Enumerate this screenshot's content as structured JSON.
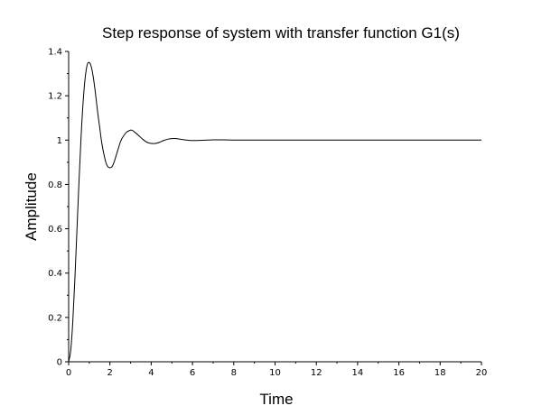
{
  "chart_data": {
    "type": "line",
    "title": "Step response of system with transfer function G1(s)",
    "xlabel": "Time",
    "ylabel": "Amplitude",
    "xlim": [
      0,
      20
    ],
    "ylim": [
      0,
      1.4
    ],
    "x_ticks": [
      0,
      2,
      4,
      6,
      8,
      10,
      12,
      14,
      16,
      18,
      20
    ],
    "x_tick_labels": [
      "0",
      "2",
      "4",
      "6",
      "8",
      "10",
      "12",
      "14",
      "16",
      "18",
      "20"
    ],
    "y_ticks": [
      0,
      0.2,
      0.4,
      0.6,
      0.8,
      1,
      1.2,
      1.4
    ],
    "y_tick_labels": [
      "0",
      "0.2",
      "0.4",
      "0.6",
      "0.8",
      "1",
      "1.2",
      "1.4"
    ],
    "grid": false,
    "line_color": "#000000",
    "series": [
      {
        "x": [
          0,
          0.1,
          0.2,
          0.3,
          0.4,
          0.5,
          0.6,
          0.7,
          0.8,
          0.9,
          1.0,
          1.1,
          1.2,
          1.3,
          1.4,
          1.5,
          1.6,
          1.7,
          1.8,
          1.9,
          2.0,
          2.1,
          2.2,
          2.3,
          2.4,
          2.5,
          2.6,
          2.8,
          3.0,
          3.1,
          3.2,
          3.4,
          3.6,
          3.8,
          4.0,
          4.2,
          4.4,
          4.6,
          4.8,
          5.0,
          5.2,
          5.4,
          5.6,
          5.8,
          6.0,
          6.5,
          7.0,
          7.5,
          8.0,
          8.5,
          9.0,
          10,
          12,
          14,
          16,
          18,
          20
        ],
        "values": [
          0,
          0.05,
          0.18,
          0.37,
          0.59,
          0.81,
          1.01,
          1.17,
          1.28,
          1.34,
          1.35,
          1.33,
          1.28,
          1.21,
          1.13,
          1.06,
          0.99,
          0.94,
          0.9,
          0.88,
          0.875,
          0.88,
          0.9,
          0.93,
          0.96,
          0.99,
          1.01,
          1.035,
          1.045,
          1.043,
          1.036,
          1.02,
          1.003,
          0.99,
          0.985,
          0.985,
          0.99,
          0.998,
          1.004,
          1.007,
          1.007,
          1.004,
          1.001,
          0.999,
          0.998,
          0.999,
          1.001,
          1.001,
          1.0,
          1.0,
          1.0,
          1.0,
          1.0,
          1.0,
          1.0,
          1.0,
          1.0
        ]
      }
    ]
  }
}
